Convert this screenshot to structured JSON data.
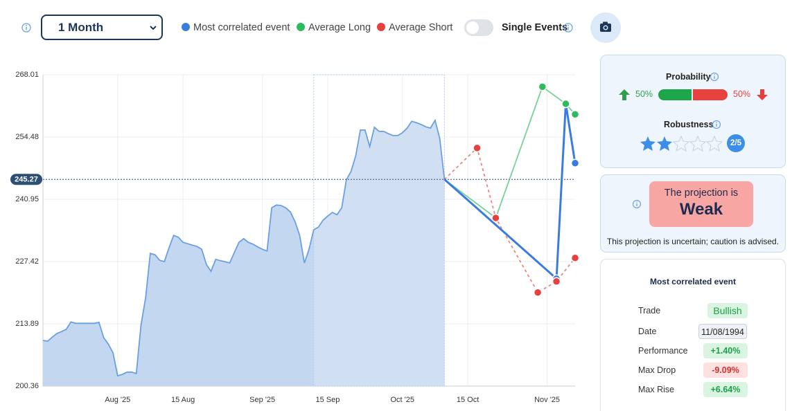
{
  "toolbar": {
    "period": "1 Month",
    "toggle_label": "Single Events"
  },
  "chart_data": {
    "type": "line",
    "xlim": [
      0,
      114
    ],
    "ylim": [
      200.36,
      268.01
    ],
    "xticks": [
      {
        "value": 16,
        "label": "Aug '25"
      },
      {
        "value": 30,
        "label": "15 Aug"
      },
      {
        "value": 47,
        "label": "Sep '25"
      },
      {
        "value": 61,
        "label": "15 Sep"
      },
      {
        "value": 77,
        "label": "Oct '25"
      },
      {
        "value": 91,
        "label": "15 Oct"
      },
      {
        "value": 108,
        "label": "Nov '25"
      }
    ],
    "yticks": [
      200.36,
      213.89,
      227.42,
      240.95,
      254.48,
      268.01
    ],
    "grid": true,
    "current_value": 245.27,
    "highlight_x": [
      58,
      86
    ],
    "series": [
      {
        "color": "#6a9fe0",
        "fill": "#c4d7f0",
        "x": [
          0,
          1,
          2,
          3,
          4,
          5,
          6,
          7,
          8,
          9,
          10,
          11,
          12,
          13,
          14,
          15,
          16,
          17,
          18,
          19,
          20,
          21,
          22,
          23,
          24,
          25,
          26,
          27,
          28,
          29,
          30,
          31,
          32,
          33,
          34,
          35,
          36,
          37,
          38,
          39,
          40,
          41,
          42,
          43,
          44,
          45,
          46,
          47,
          48,
          49,
          50,
          51,
          52,
          53,
          54,
          55,
          56,
          57,
          58,
          59,
          60,
          61,
          62,
          63,
          64,
          65,
          66,
          67,
          68,
          69,
          70,
          71,
          72,
          73,
          74,
          75,
          76,
          77,
          78,
          79,
          80,
          81,
          82,
          83,
          84,
          85,
          86
        ],
        "values": [
          210.3,
          210.1,
          211.0,
          211.8,
          212.2,
          212.7,
          214.3,
          214.0,
          214.0,
          214.0,
          214.0,
          214.0,
          214.2,
          210.9,
          209.5,
          207.6,
          202.6,
          202.9,
          203.4,
          203.4,
          203.1,
          213.6,
          219.6,
          229.2,
          228.9,
          227.7,
          227.4,
          230.4,
          233.1,
          232.7,
          231.6,
          231.3,
          231.0,
          230.7,
          230.1,
          226.8,
          225.3,
          227.9,
          227.6,
          227.4,
          227.1,
          229.4,
          231.6,
          232.4,
          231.6,
          231.2,
          230.6,
          230.1,
          229.7,
          239.1,
          239.7,
          239.6,
          239.1,
          238.2,
          236.1,
          233.1,
          227.1,
          230.1,
          234.3,
          234.9,
          236.4,
          237.3,
          238.1,
          237.6,
          239.1,
          245.2,
          247.0,
          250.4,
          256.0,
          256.0,
          252.4,
          256.6,
          255.7,
          255.7,
          255.2,
          254.8,
          254.8,
          255.4,
          256.4,
          257.9,
          257.6,
          257.2,
          256.7,
          256.4,
          258.1,
          254.2,
          245.27
        ]
      },
      {
        "name": "Most correlated event",
        "color": "#3b7be0",
        "x": [
          86,
          110,
          112,
          114
        ],
        "values": [
          245.27,
          223.7,
          261.7,
          248.8
        ]
      },
      {
        "name": "Average Long",
        "color": "#2dbb5d",
        "x": [
          86,
          97,
          107,
          112,
          114
        ],
        "values": [
          245.27,
          236.9,
          265.4,
          261.7,
          259.4
        ]
      },
      {
        "name": "Average Short",
        "color": "#e5413f",
        "dashed": true,
        "x": [
          86,
          93,
          97,
          106,
          110,
          114
        ],
        "values": [
          245.27,
          252.1,
          236.9,
          220.7,
          223.1,
          228.2
        ]
      }
    ]
  },
  "probability": {
    "title": "Probability",
    "up": "50%",
    "down": "50%",
    "robustness_title": "Robustness",
    "robustness": "2/5"
  },
  "projection": {
    "heading": "The projection is",
    "strength": "Weak",
    "note": "This projection is uncertain; caution is advised."
  },
  "correlated_event": {
    "title": "Most correlated event",
    "rows": [
      [
        "Trade",
        "Bullish"
      ],
      [
        "Date",
        "11/08/1994"
      ],
      [
        "Performance",
        "+1.40%"
      ],
      [
        "Max Drop",
        "-9.09%"
      ],
      [
        "Max Rise",
        "+6.64%"
      ]
    ]
  }
}
